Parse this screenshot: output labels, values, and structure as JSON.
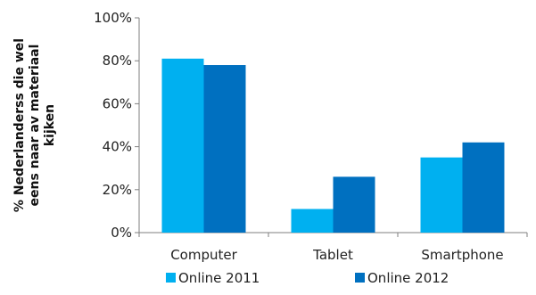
{
  "chart_data": {
    "type": "bar",
    "title": "",
    "xlabel": "",
    "ylabel": "% Nederlanderss die wel eens naar av materiaal kijken",
    "ylabel_lines": [
      "% Nederlanderss die wel",
      "eens naar av materiaal",
      "kijken"
    ],
    "categories": [
      "Computer",
      "Tablet",
      "Smartphone"
    ],
    "ylim": [
      0,
      100
    ],
    "yticks": [
      0,
      20,
      40,
      60,
      80,
      100
    ],
    "ytick_labels": [
      "0%",
      "20%",
      "40%",
      "60%",
      "80%",
      "100%"
    ],
    "grid": false,
    "legend_position": "bottom",
    "series": [
      {
        "name": "Online 2011",
        "color": "#00b0f0",
        "values": [
          81,
          11,
          35
        ]
      },
      {
        "name": "Online 2012",
        "color": "#0070c0",
        "values": [
          78,
          26,
          42
        ]
      }
    ]
  }
}
